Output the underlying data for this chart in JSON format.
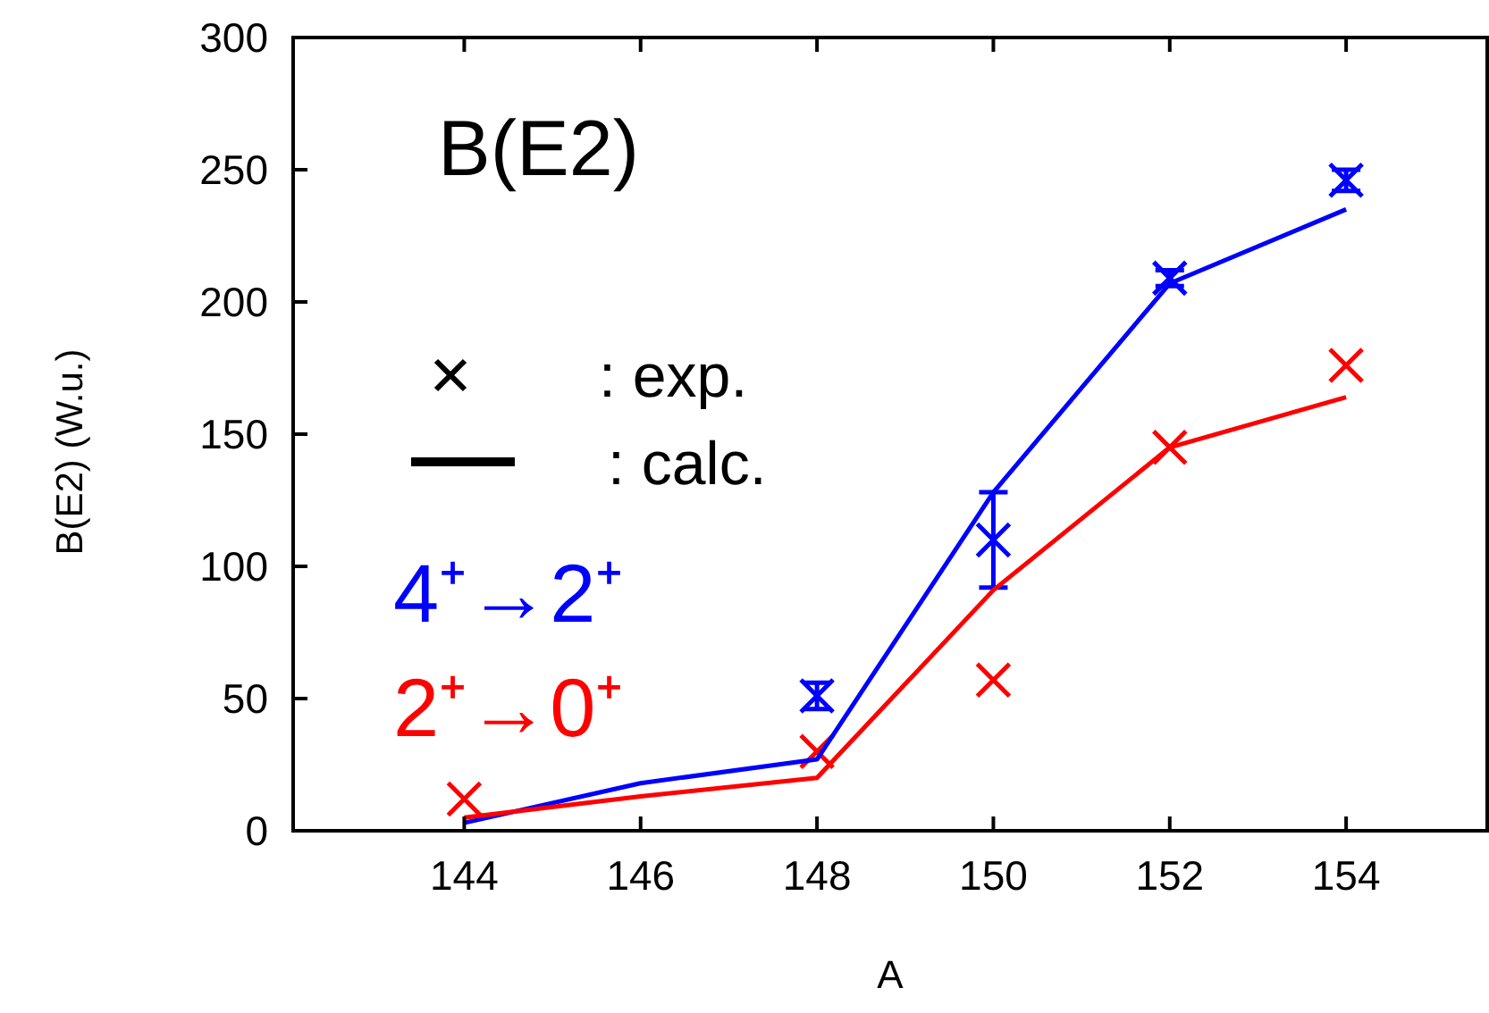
{
  "chart_data": {
    "type": "line",
    "title": "B(E2)",
    "xlabel": "A",
    "ylabel": "B(E2) (W.u.)",
    "xlim": [
      142.06,
      155.6
    ],
    "xticks": [
      144,
      146,
      148,
      150,
      152,
      154
    ],
    "ylim": [
      0,
      300
    ],
    "yticks": [
      0,
      50,
      100,
      150,
      200,
      250,
      300
    ],
    "grid": false,
    "legend": "left",
    "annotations": [
      ": exp.",
      ": calc."
    ],
    "series": [
      {
        "name": "4⁺→2⁺",
        "type": "scatter",
        "marker": "cross",
        "color": "#0000ff",
        "x": [
          148,
          150,
          152,
          154
        ],
        "values": [
          51,
          110,
          209,
          246
        ],
        "errors": [
          5,
          18,
          3,
          4
        ]
      },
      {
        "name": "2⁺→0⁺",
        "type": "scatter",
        "marker": "cross",
        "color": "#ff0000",
        "x": [
          144,
          148,
          150,
          152,
          154
        ],
        "values": [
          12,
          30,
          57,
          145,
          176
        ]
      },
      {
        "color": "#0000ff",
        "x": [
          144,
          146,
          148,
          150,
          152,
          154
        ],
        "values": [
          3,
          18,
          27,
          128,
          207,
          235
        ]
      },
      {
        "color": "#ff0000",
        "x": [
          144,
          146,
          148,
          150,
          152,
          154
        ],
        "values": [
          5,
          13,
          20,
          91,
          145,
          164
        ]
      }
    ]
  }
}
